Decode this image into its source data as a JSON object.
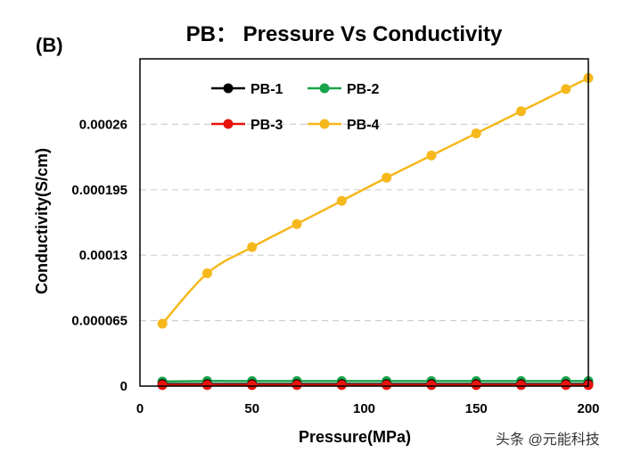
{
  "chart_data": {
    "type": "line",
    "panel_label": "(B)",
    "title": "PB： Pressure Vs Conductivity",
    "xlabel": "Pressure(MPa)",
    "ylabel": "Conductivity(S/cm)",
    "xlim": [
      0,
      200
    ],
    "ylim": [
      0,
      0.000325
    ],
    "x_ticks": [
      "0",
      "50",
      "100",
      "150",
      "200"
    ],
    "y_ticks": [
      "0",
      "0.000065",
      "0.00013",
      "0.000195",
      "0.00026"
    ],
    "grid": "horizontal dashed",
    "legend_position": "top-left, inside plot",
    "x": [
      10,
      30,
      50,
      70,
      90,
      110,
      130,
      150,
      170,
      190,
      200
    ],
    "series": [
      {
        "name": "PB-1",
        "color": "#000000",
        "values": [
          2e-06,
          2e-06,
          2e-06,
          2e-06,
          2e-06,
          2e-06,
          2e-06,
          2e-06,
          2e-06,
          2e-06,
          2e-06
        ]
      },
      {
        "name": "PB-2",
        "color": "#1aa34a",
        "values": [
          4.5e-06,
          5e-06,
          5e-06,
          5e-06,
          5e-06,
          5e-06,
          5e-06,
          5e-06,
          5e-06,
          5e-06,
          5e-06
        ]
      },
      {
        "name": "PB-3",
        "color": "#e8140c",
        "values": [
          1e-06,
          1e-06,
          1e-06,
          1e-06,
          1e-06,
          1e-06,
          1e-06,
          1e-06,
          1e-06,
          1e-06,
          1e-06
        ]
      },
      {
        "name": "PB-4",
        "color": "#f6b81c",
        "values": [
          6.2e-05,
          0.000112,
          0.000138,
          0.000161,
          0.000184,
          0.000207,
          0.000229,
          0.000251,
          0.000273,
          0.000295,
          0.000306
        ]
      }
    ]
  },
  "watermark": "头条 @元能科技"
}
